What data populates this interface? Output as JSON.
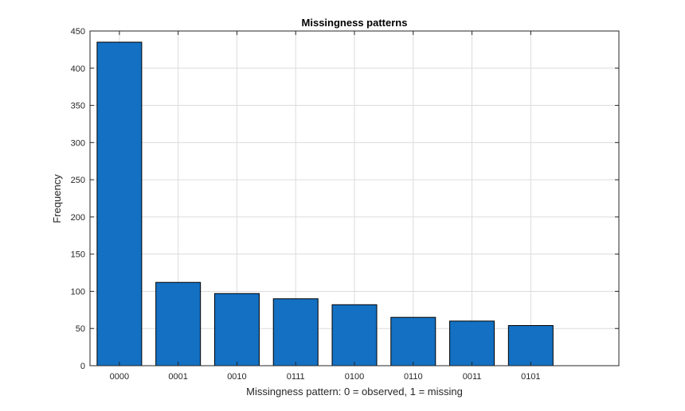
{
  "chart_data": {
    "type": "bar",
    "title": "Missingness patterns",
    "xlabel": "Missingness pattern: 0 = observed, 1 = missing",
    "ylabel": "Frequency",
    "categories": [
      "0000",
      "0001",
      "0010",
      "0111",
      "0100",
      "0110",
      "0011",
      "0101"
    ],
    "values": [
      435,
      112,
      97,
      90,
      82,
      65,
      60,
      54
    ],
    "ylim": [
      0,
      450
    ],
    "yticks": [
      0,
      50,
      100,
      150,
      200,
      250,
      300,
      350,
      400,
      450
    ],
    "xlim": [
      -0.5,
      8.5
    ],
    "grid": true,
    "bar_color": "#1470c2",
    "bar_edge_color": "#000000",
    "grid_color": "#dcdcdc",
    "axis_color": "#262626"
  }
}
